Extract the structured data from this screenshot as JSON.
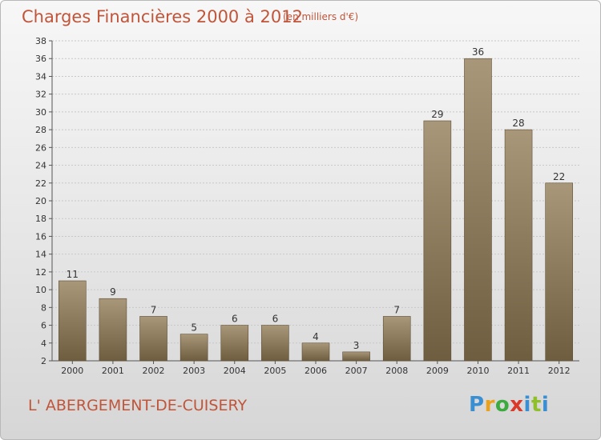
{
  "header": {
    "title": "Charges Financières 2000 à 2012",
    "subtitle": "(en milliers d'€)"
  },
  "footer": {
    "commune": "L' ABERGEMENT-DE-CUISERY",
    "logo_letters": [
      "P",
      "r",
      "o",
      "x",
      "i",
      "t",
      "i"
    ]
  },
  "colors": {
    "title": "#c0553a",
    "bar_top": "#a9977a",
    "bar_bottom": "#6f5d40",
    "grid": "#c8c8c8"
  },
  "chart_data": {
    "type": "bar",
    "title": "Charges Financières 2000 à 2012",
    "subtitle": "(en milliers d'€)",
    "categories": [
      "2000",
      "2001",
      "2002",
      "2003",
      "2004",
      "2005",
      "2006",
      "2007",
      "2008",
      "2009",
      "2010",
      "2011",
      "2012"
    ],
    "values": [
      11,
      9,
      7,
      5,
      6,
      6,
      4,
      3,
      7,
      29,
      36,
      28,
      22
    ],
    "ylim": [
      2,
      38
    ],
    "yticks": [
      2,
      4,
      6,
      8,
      10,
      12,
      14,
      16,
      18,
      20,
      22,
      24,
      26,
      28,
      30,
      32,
      34,
      36,
      38
    ],
    "grid": true,
    "data_labels": true
  }
}
